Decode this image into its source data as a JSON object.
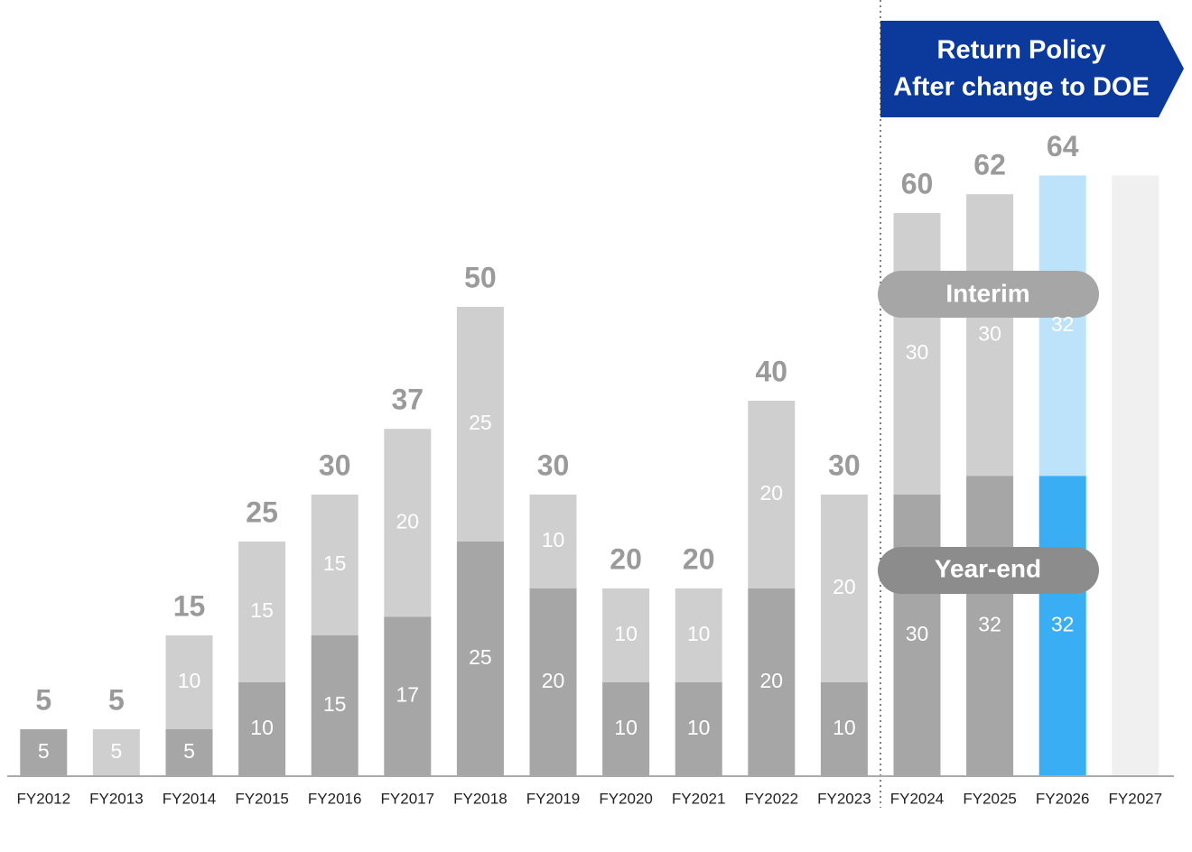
{
  "chart_data": {
    "type": "stacked_bar",
    "categories": [
      "FY2012",
      "FY2013",
      "FY2014",
      "FY2015",
      "FY2016",
      "FY2017",
      "FY2018",
      "FY2019",
      "FY2020",
      "FY2021",
      "FY2022",
      "FY2023",
      "FY2024",
      "FY2025",
      "FY2026",
      "FY2027"
    ],
    "series": [
      {
        "name": "Year-end",
        "color": "#a6a6a6",
        "values": [
          5,
          null,
          5,
          10,
          15,
          17,
          25,
          20,
          10,
          10,
          20,
          10,
          30,
          32,
          32,
          null
        ],
        "colors": [
          "#a6a6a6",
          "#a6a6a6",
          "#a6a6a6",
          "#a6a6a6",
          "#a6a6a6",
          "#a6a6a6",
          "#a6a6a6",
          "#a6a6a6",
          "#a6a6a6",
          "#a6a6a6",
          "#a6a6a6",
          "#a6a6a6",
          "#a6a6a6",
          "#a6a6a6",
          "#3aaef5",
          "#a6a6a6"
        ]
      },
      {
        "name": "Interim",
        "color": "#cfcfcf",
        "values": [
          null,
          5,
          10,
          15,
          15,
          20,
          25,
          10,
          10,
          10,
          20,
          20,
          30,
          30,
          32,
          null
        ],
        "colors": [
          "#cfcfcf",
          "#cfcfcf",
          "#cfcfcf",
          "#cfcfcf",
          "#cfcfcf",
          "#cfcfcf",
          "#cfcfcf",
          "#cfcfcf",
          "#cfcfcf",
          "#cfcfcf",
          "#cfcfcf",
          "#cfcfcf",
          "#cfcfcf",
          "#cfcfcf",
          "#bde3fb",
          "#cfcfcf"
        ]
      },
      {
        "color": "#f0f0f0",
        "values": [
          null,
          null,
          null,
          null,
          null,
          null,
          null,
          null,
          null,
          null,
          null,
          null,
          null,
          null,
          null,
          64
        ]
      }
    ],
    "totals": [
      5,
      5,
      15,
      25,
      30,
      37,
      50,
      30,
      20,
      20,
      40,
      30,
      60,
      62,
      64,
      null
    ],
    "ylim": [
      0,
      80
    ],
    "annotation": {
      "lines": [
        "Return Policy",
        "After change to DOE"
      ]
    }
  }
}
